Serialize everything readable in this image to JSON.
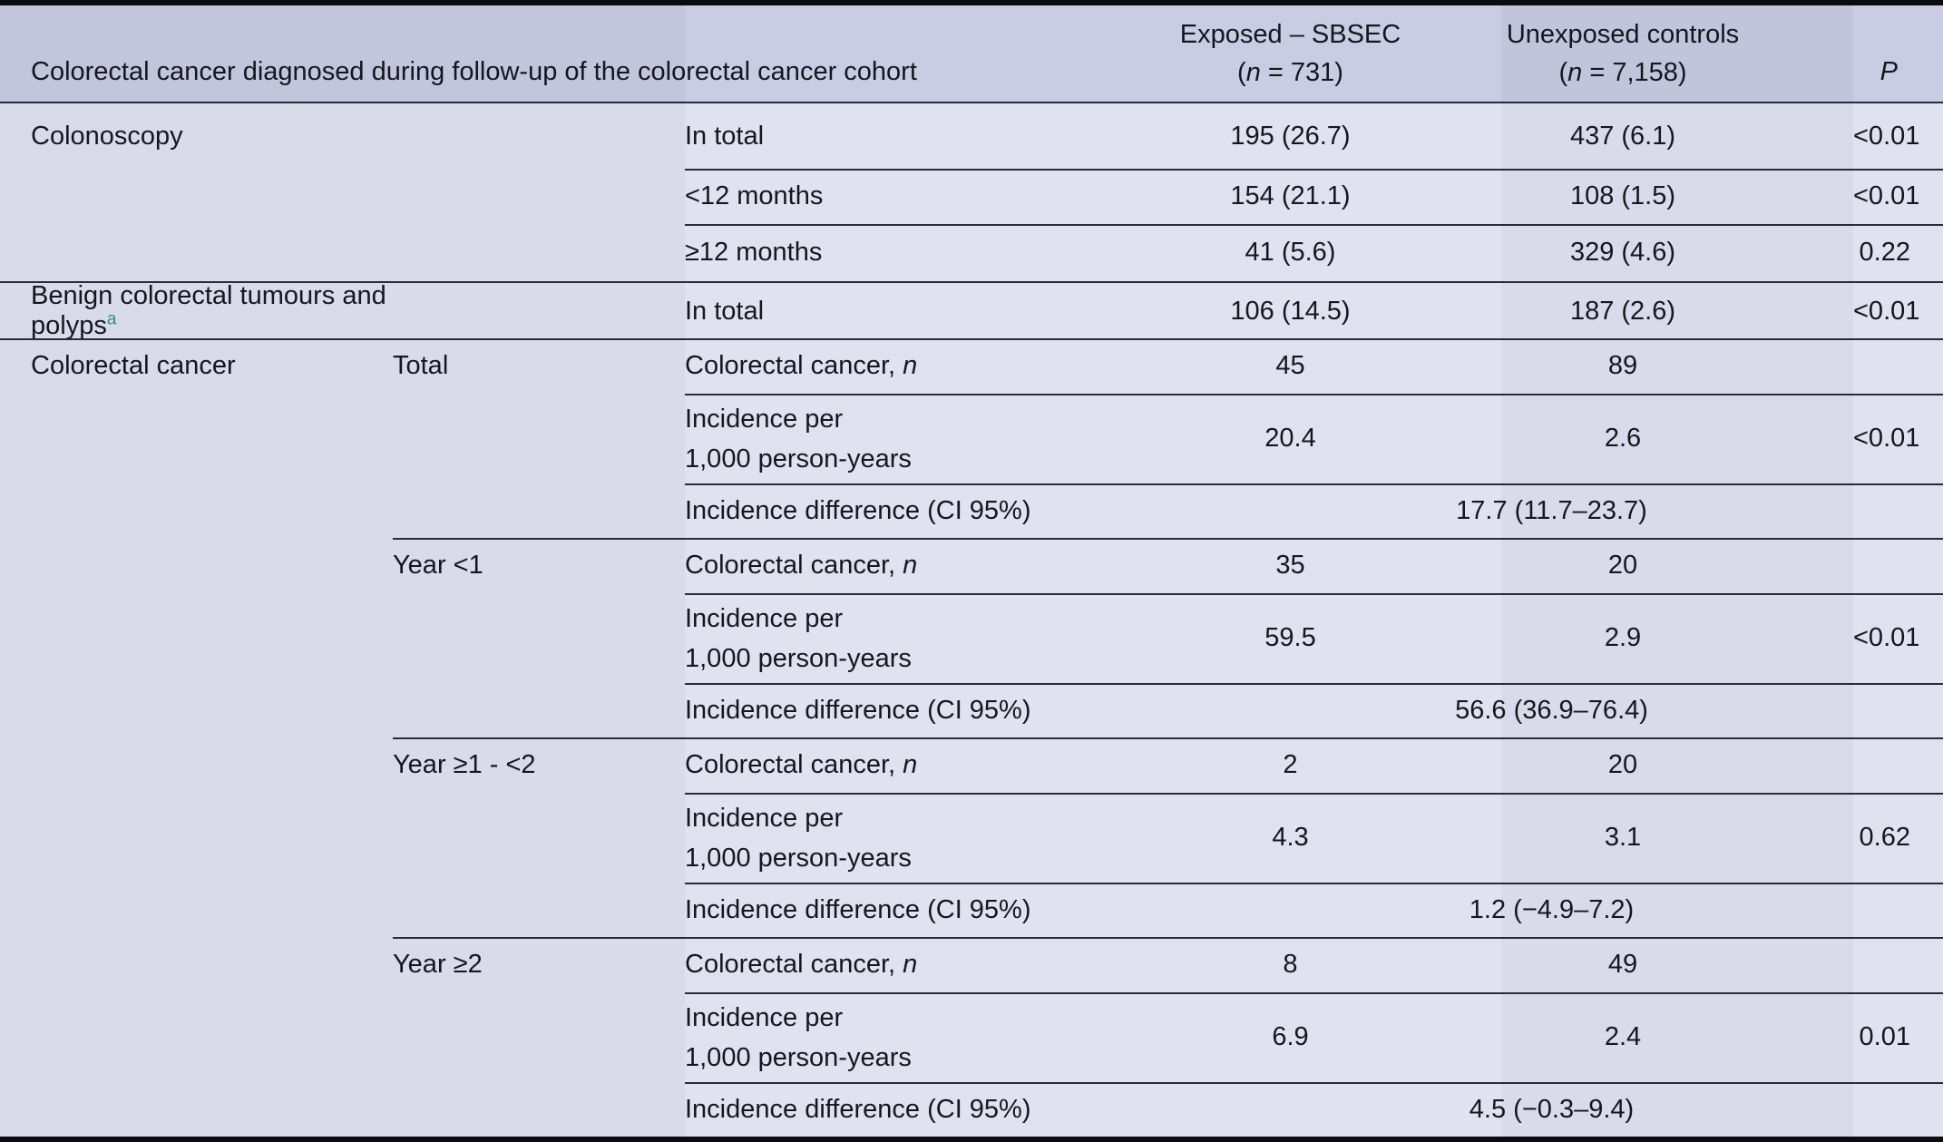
{
  "header": {
    "description": "Colorectal cancer diagnosed during follow-up of the colorectal cancer cohort",
    "exposed_line1": "Exposed – SBSEC",
    "exposed_n_prefix": "(",
    "exposed_n_suffix": " = 731)",
    "unexposed_line1": "Unexposed controls",
    "unexposed_n_prefix": "(",
    "unexposed_n_suffix": " = 7,158)",
    "n_symbol": "n",
    "p_label": "P"
  },
  "rows": [
    {
      "c1": "Colonoscopy",
      "c3": "In total",
      "c4": "195 (26.7)",
      "c5": "437 (6.1)",
      "c6": "<0.01"
    },
    {
      "c3": "<12 months",
      "c4": "154 (21.1)",
      "c5": "108 (1.5)",
      "c6": "<0.01"
    },
    {
      "c3": "≥12 months",
      "c4": "41 (5.6)",
      "c5": "329 (4.6)",
      "c6": "0.22"
    },
    {
      "c1": "Benign colorectal tumours and polyps",
      "c1_sup": "a",
      "c3": "In total",
      "c4": "106 (14.5)",
      "c5": "187 (2.6)",
      "c6": "<0.01"
    },
    {
      "c1": "Colorectal cancer",
      "c2": "Total",
      "c3_prefix": "Colorectal cancer, ",
      "c3_italic": "n",
      "c4": "45",
      "c5": "89"
    },
    {
      "c3_line1": "Incidence per",
      "c3_line2": "1,000 person-years",
      "c4": "20.4",
      "c5": "2.6",
      "c6": "<0.01"
    },
    {
      "c3": "Incidence difference (CI 95%)",
      "span": "17.7 (11.7–23.7)"
    },
    {
      "c2": "Year <1",
      "c3_prefix": "Colorectal cancer, ",
      "c3_italic": "n",
      "c4": "35",
      "c5": "20"
    },
    {
      "c3_line1": "Incidence per",
      "c3_line2": "1,000 person-years",
      "c4": "59.5",
      "c5": "2.9",
      "c6": "<0.01"
    },
    {
      "c3": "Incidence difference (CI 95%)",
      "span": "56.6 (36.9–76.4)"
    },
    {
      "c2": "Year ≥1 - <2",
      "c3_prefix": "Colorectal cancer, ",
      "c3_italic": "n",
      "c4": "2",
      "c5": "20"
    },
    {
      "c3_line1": "Incidence per",
      "c3_line2": "1,000 person-years",
      "c4": "4.3",
      "c5": "3.1",
      "c6": "0.62"
    },
    {
      "c3": "Incidence difference (CI 95%)",
      "span": "1.2 (−4.9–7.2)"
    },
    {
      "c2": "Year ≥2",
      "c3_prefix": "Colorectal cancer, ",
      "c3_italic": "n",
      "c4": "8",
      "c5": "49"
    },
    {
      "c3_line1": "Incidence per",
      "c3_line2": "1,000 person-years",
      "c4": "6.9",
      "c5": "2.4",
      "c6": "0.01"
    },
    {
      "c3": "Incidence difference (CI 95%)",
      "span": "4.5 (−0.3–9.4)"
    }
  ],
  "colors": {
    "header_band_dark": "#c3c5dd",
    "header_band_light": "#cacce4",
    "body_band_dark": "#d9dbea",
    "body_band_light": "#e0e2f0",
    "rule_line": "#2b2b35",
    "outer_border": "#0b0b10",
    "footnote_marker": "#2f8f85",
    "text": "#16161f"
  }
}
